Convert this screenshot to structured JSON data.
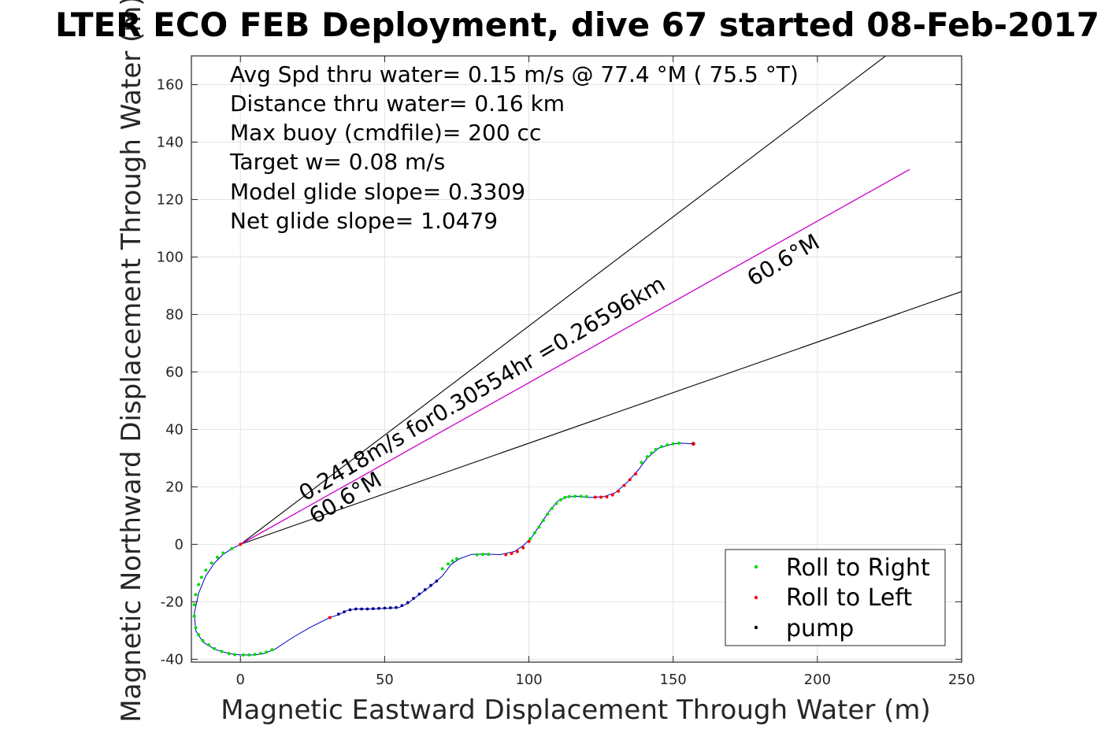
{
  "chart_data": {
    "type": "scatter",
    "title": "LTER ECO FEB Deployment, dive 67 started 08-Feb-2017",
    "xlabel": "Magnetic Eastward Displacement Through Water (m)",
    "ylabel": "Magnetic Northward Displacement Through Water (m)",
    "xlim": [
      -17,
      250
    ],
    "ylim": [
      -41,
      170
    ],
    "xticks": [
      0,
      50,
      100,
      150,
      200,
      250
    ],
    "yticks": [
      -40,
      -20,
      0,
      20,
      40,
      60,
      80,
      100,
      120,
      140,
      160
    ],
    "xtick_labels": [
      "0",
      "50",
      "100",
      "150",
      "200",
      "250"
    ],
    "ytick_labels": [
      "-40",
      "-20",
      "0",
      "20",
      "40",
      "60",
      "80",
      "100",
      "120",
      "140",
      "160"
    ],
    "grid": true,
    "annotations": [
      "Avg Spd thru water=  0.15 m/s @  77.4 °M ( 75.5 °T)",
      "Distance thru water=  0.16 km",
      "Max buoy (cmdfile)= 200 cc",
      "Target w= 0.08 m/s",
      "Model glide slope= 0.3309",
      "Net glide slope= 1.0479"
    ],
    "rotated_labels": {
      "current": "0.2418m/s for0.30554hr =0.26596km",
      "heading_near": "60.6°M",
      "heading_far": "60.6°M"
    },
    "lines": {
      "upper_bound": {
        "color": "#000000",
        "points": [
          [
            0,
            0
          ],
          [
            250,
            190
          ]
        ]
      },
      "lower_bound": {
        "color": "#000000",
        "points": [
          [
            0,
            0
          ],
          [
            250,
            88
          ]
        ]
      },
      "heading": {
        "color": "#cc00cc",
        "points": [
          [
            0,
            0
          ],
          [
            232,
            130.5
          ]
        ]
      },
      "track_end_marker": {
        "color": "#cc0000",
        "point": [
          157,
          35
        ]
      }
    },
    "track": {
      "color": "#0000cc",
      "points": [
        [
          0,
          0
        ],
        [
          -3,
          -1.5
        ],
        [
          -6,
          -3.5
        ],
        [
          -9,
          -6.5
        ],
        [
          -12,
          -11
        ],
        [
          -14.5,
          -17
        ],
        [
          -16,
          -24
        ],
        [
          -15.5,
          -30
        ],
        [
          -13,
          -34
        ],
        [
          -9,
          -36.5
        ],
        [
          -4,
          -38
        ],
        [
          0,
          -38.5
        ],
        [
          5,
          -38.5
        ],
        [
          8,
          -38
        ],
        [
          12,
          -36.5
        ],
        [
          18,
          -32.5
        ],
        [
          24,
          -29
        ],
        [
          31,
          -25.5
        ],
        [
          34,
          -24.5
        ],
        [
          37,
          -23
        ],
        [
          40,
          -22.5
        ],
        [
          45,
          -22.5
        ],
        [
          50,
          -22.3
        ],
        [
          55,
          -22
        ],
        [
          58,
          -20.5
        ],
        [
          62,
          -17.5
        ],
        [
          66,
          -14.5
        ],
        [
          70,
          -11
        ],
        [
          73,
          -7
        ],
        [
          76,
          -5
        ],
        [
          80,
          -3.5
        ],
        [
          85,
          -3.4
        ],
        [
          90,
          -3.6
        ],
        [
          95,
          -2.5
        ],
        [
          98,
          -0.5
        ],
        [
          101,
          2.5
        ],
        [
          104,
          7
        ],
        [
          107,
          11.5
        ],
        [
          110,
          15
        ],
        [
          113,
          16.5
        ],
        [
          117,
          16.7
        ],
        [
          121,
          16.3
        ],
        [
          126,
          16.6
        ],
        [
          130,
          18
        ],
        [
          134,
          21.5
        ],
        [
          138,
          26
        ],
        [
          141,
          30
        ],
        [
          145,
          33.5
        ],
        [
          150,
          35
        ],
        [
          153,
          35.2
        ],
        [
          157,
          35
        ]
      ]
    },
    "legend": {
      "placement": "bottom-right",
      "entries": [
        {
          "label": "Roll to Right",
          "color": "#00dd00"
        },
        {
          "label": "Roll to Left",
          "color": "#ff0000"
        },
        {
          "label": "pump",
          "color": "#000000"
        }
      ]
    },
    "markers": {
      "roll_right": {
        "color": "#00dd00",
        "x": [
          -3,
          -6,
          -8,
          -10,
          -12,
          -13.5,
          -14.5,
          -15.5,
          -16,
          -16,
          -15.5,
          -14.5,
          -13,
          -11,
          -9,
          -6.5,
          -4,
          -2,
          1,
          3,
          5,
          7,
          9,
          11,
          70,
          72,
          73.5,
          75,
          82,
          84,
          86,
          100.5,
          102,
          103.5,
          105,
          106.5,
          108,
          109.5,
          111,
          112.5,
          114,
          116,
          118,
          120,
          139,
          141,
          142.5,
          144,
          146,
          148,
          150,
          152
        ],
        "y": [
          -1.5,
          -3,
          -4.5,
          -6.5,
          -9,
          -11.5,
          -14,
          -17.5,
          -21,
          -25,
          -29,
          -31.5,
          -33.5,
          -35,
          -36.3,
          -37.3,
          -38,
          -38.4,
          -38.5,
          -38.5,
          -38.3,
          -38,
          -37.5,
          -36.7,
          -8.5,
          -6.8,
          -5.8,
          -5,
          -3.6,
          -3.5,
          -3.5,
          2,
          4,
          6,
          8.3,
          10.5,
          12.5,
          14.2,
          15.5,
          16.3,
          16.6,
          16.7,
          16.7,
          16.6,
          28.5,
          30.5,
          31.8,
          33,
          34,
          34.6,
          35,
          35.2
        ]
      },
      "roll_left": {
        "color": "#ff0000",
        "x": [
          0,
          31,
          92,
          94,
          96,
          98,
          100,
          123,
          125,
          127,
          129,
          131,
          133,
          135,
          137,
          157
        ],
        "y": [
          0,
          -25.5,
          -3.6,
          -3.2,
          -2.5,
          -1.2,
          1,
          16.4,
          16.4,
          16.5,
          17.2,
          18.5,
          20.5,
          22.5,
          24.5,
          35
        ]
      },
      "pump": {
        "color": "#000080",
        "x": [
          34,
          36,
          38,
          40,
          42,
          44,
          46,
          48,
          50,
          52,
          54,
          56,
          58,
          60,
          62,
          64,
          66,
          68
        ],
        "y": [
          -24.3,
          -23.5,
          -22.8,
          -22.5,
          -22.5,
          -22.5,
          -22.4,
          -22.3,
          -22.2,
          -22.1,
          -22,
          -21.3,
          -20.3,
          -18.8,
          -17.3,
          -15.8,
          -14.3,
          -12.8
        ]
      }
    }
  }
}
